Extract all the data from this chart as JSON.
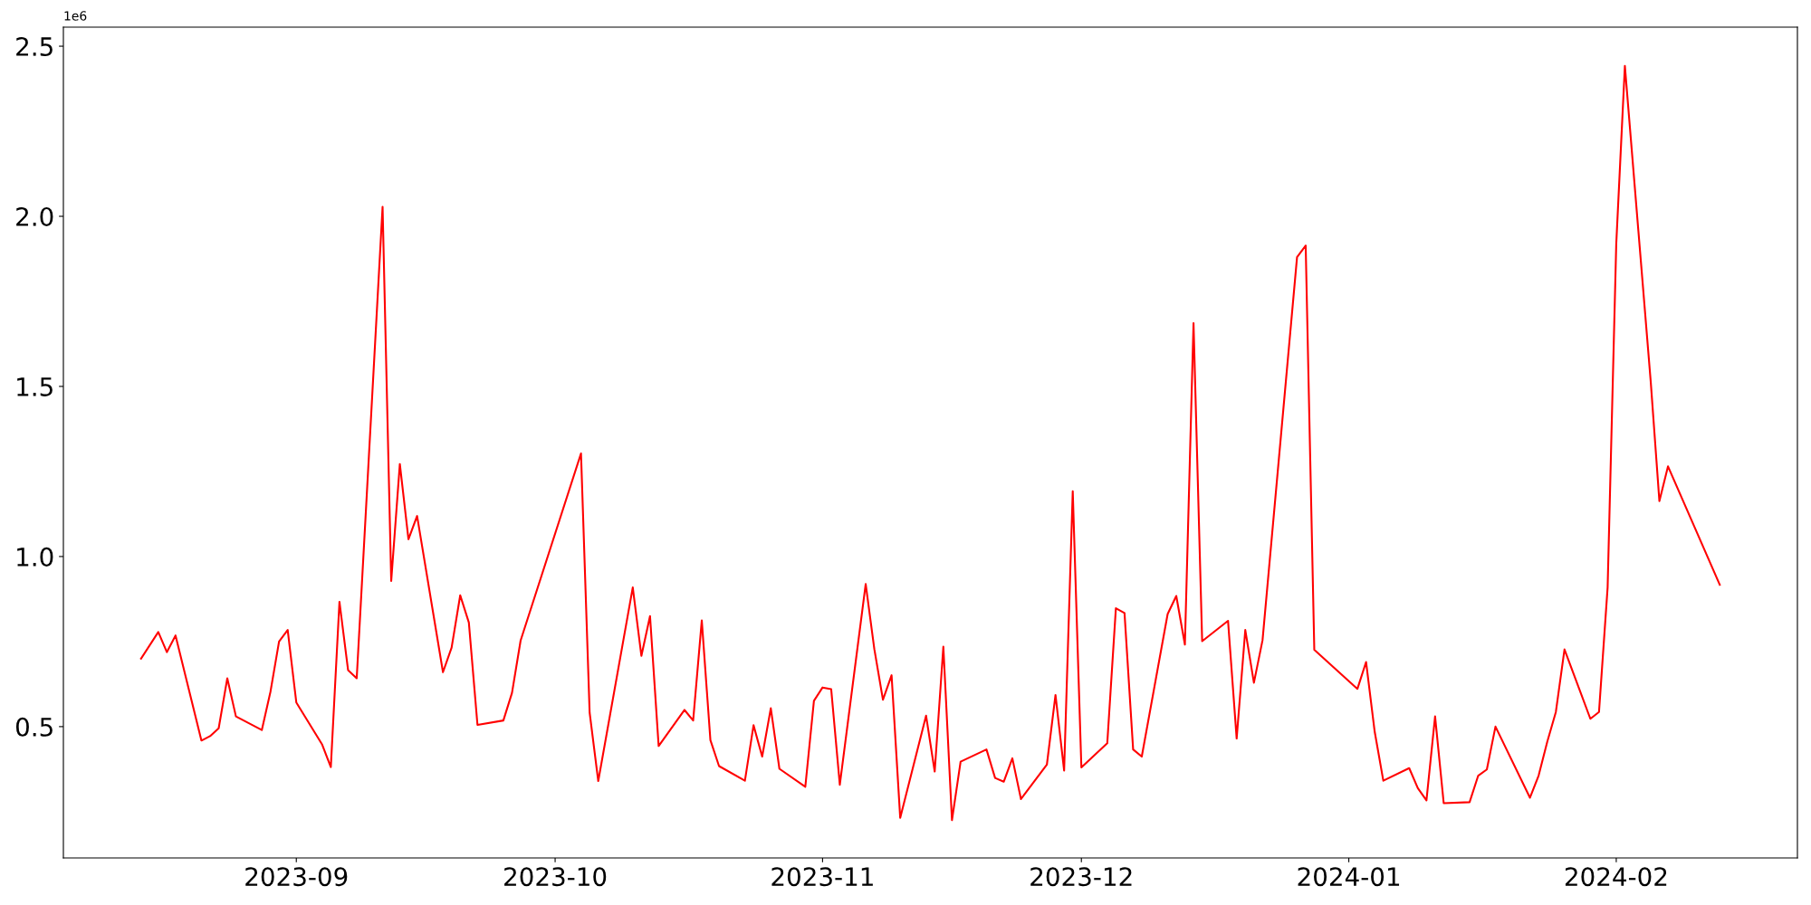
{
  "chart_data": {
    "type": "line",
    "x": [
      "2023-08-14",
      "2023-08-16",
      "2023-08-17",
      "2023-08-18",
      "2023-08-21",
      "2023-08-22",
      "2023-08-23",
      "2023-08-24",
      "2023-08-25",
      "2023-08-28",
      "2023-08-29",
      "2023-08-30",
      "2023-08-31",
      "2023-09-01",
      "2023-09-04",
      "2023-09-05",
      "2023-09-06",
      "2023-09-07",
      "2023-09-08",
      "2023-09-11",
      "2023-09-12",
      "2023-09-13",
      "2023-09-14",
      "2023-09-15",
      "2023-09-18",
      "2023-09-19",
      "2023-09-20",
      "2023-09-21",
      "2023-09-22",
      "2023-09-25",
      "2023-09-26",
      "2023-09-27",
      "2023-10-04",
      "2023-10-05",
      "2023-10-06",
      "2023-10-10",
      "2023-10-11",
      "2023-10-12",
      "2023-10-13",
      "2023-10-16",
      "2023-10-17",
      "2023-10-18",
      "2023-10-19",
      "2023-10-20",
      "2023-10-23",
      "2023-10-24",
      "2023-10-25",
      "2023-10-26",
      "2023-10-27",
      "2023-10-30",
      "2023-10-31",
      "2023-11-01",
      "2023-11-02",
      "2023-11-03",
      "2023-11-06",
      "2023-11-07",
      "2023-11-08",
      "2023-11-09",
      "2023-11-10",
      "2023-11-13",
      "2023-11-14",
      "2023-11-15",
      "2023-11-16",
      "2023-11-17",
      "2023-11-20",
      "2023-11-21",
      "2023-11-22",
      "2023-11-23",
      "2023-11-24",
      "2023-11-27",
      "2023-11-28",
      "2023-11-29",
      "2023-11-30",
      "2023-12-01",
      "2023-12-04",
      "2023-12-05",
      "2023-12-06",
      "2023-12-07",
      "2023-12-08",
      "2023-12-11",
      "2023-12-12",
      "2023-12-13",
      "2023-12-14",
      "2023-12-15",
      "2023-12-18",
      "2023-12-19",
      "2023-12-20",
      "2023-12-21",
      "2023-12-22",
      "2023-12-26",
      "2023-12-27",
      "2023-12-28",
      "2024-01-02",
      "2024-01-03",
      "2024-01-04",
      "2024-01-05",
      "2024-01-08",
      "2024-01-09",
      "2024-01-10",
      "2024-01-11",
      "2024-01-12",
      "2024-01-15",
      "2024-01-16",
      "2024-01-17",
      "2024-01-18",
      "2024-01-22",
      "2024-01-23",
      "2024-01-24",
      "2024-01-25",
      "2024-01-26",
      "2024-01-29",
      "2024-01-30",
      "2024-01-31",
      "2024-02-01",
      "2024-02-02",
      "2024-02-05",
      "2024-02-06",
      "2024-02-07",
      "2024-02-13"
    ],
    "series": [
      {
        "color": "#ff0000",
        "values": [
          0.7,
          0.778,
          0.719,
          0.768,
          0.459,
          0.472,
          0.495,
          0.642,
          0.53,
          0.49,
          0.602,
          0.75,
          0.784,
          0.571,
          0.447,
          0.381,
          0.867,
          0.666,
          0.642,
          2.028,
          0.928,
          1.272,
          1.051,
          1.119,
          0.66,
          0.732,
          0.886,
          0.806,
          0.505,
          0.518,
          0.599,
          0.753,
          1.303,
          0.541,
          0.34,
          0.909,
          0.708,
          0.825,
          0.443,
          0.549,
          0.518,
          0.812,
          0.46,
          0.384,
          0.341,
          0.504,
          0.412,
          0.554,
          0.376,
          0.323,
          0.576,
          0.615,
          0.61,
          0.329,
          0.919,
          0.728,
          0.579,
          0.651,
          0.232,
          0.532,
          0.368,
          0.735,
          0.225,
          0.397,
          0.433,
          0.349,
          0.338,
          0.407,
          0.287,
          0.388,
          0.593,
          0.371,
          1.192,
          0.38,
          0.451,
          0.848,
          0.834,
          0.433,
          0.412,
          0.831,
          0.884,
          0.741,
          1.686,
          0.751,
          0.811,
          0.465,
          0.784,
          0.629,
          0.754,
          1.88,
          1.914,
          0.726,
          0.611,
          0.69,
          0.485,
          0.341,
          0.378,
          0.319,
          0.283,
          0.53,
          0.275,
          0.278,
          0.356,
          0.374,
          0.5,
          0.291,
          0.356,
          0.455,
          0.543,
          0.727,
          0.523,
          0.543,
          0.909,
          1.919,
          2.442,
          1.513,
          1.163,
          1.265,
          0.917
        ]
      }
    ],
    "xlim": [
      "2023-08-05",
      "2024-02-22"
    ],
    "xticks": [
      {
        "value": "2023-09-01",
        "label": "2023-09"
      },
      {
        "value": "2023-10-01",
        "label": "2023-10"
      },
      {
        "value": "2023-11-01",
        "label": "2023-11"
      },
      {
        "value": "2023-12-01",
        "label": "2023-12"
      },
      {
        "value": "2024-01-01",
        "label": "2024-01"
      },
      {
        "value": "2024-02-01",
        "label": "2024-02"
      }
    ],
    "ylim": [
      0.114,
      2.556
    ],
    "yticks": [
      0.5,
      {
        "value": 1,
        "label": "1.0"
      },
      1.5,
      {
        "value": 2,
        "label": "2.0"
      },
      2.5
    ],
    "annotations": [
      "1e6"
    ],
    "marker": "none",
    "line_style": "solid"
  }
}
